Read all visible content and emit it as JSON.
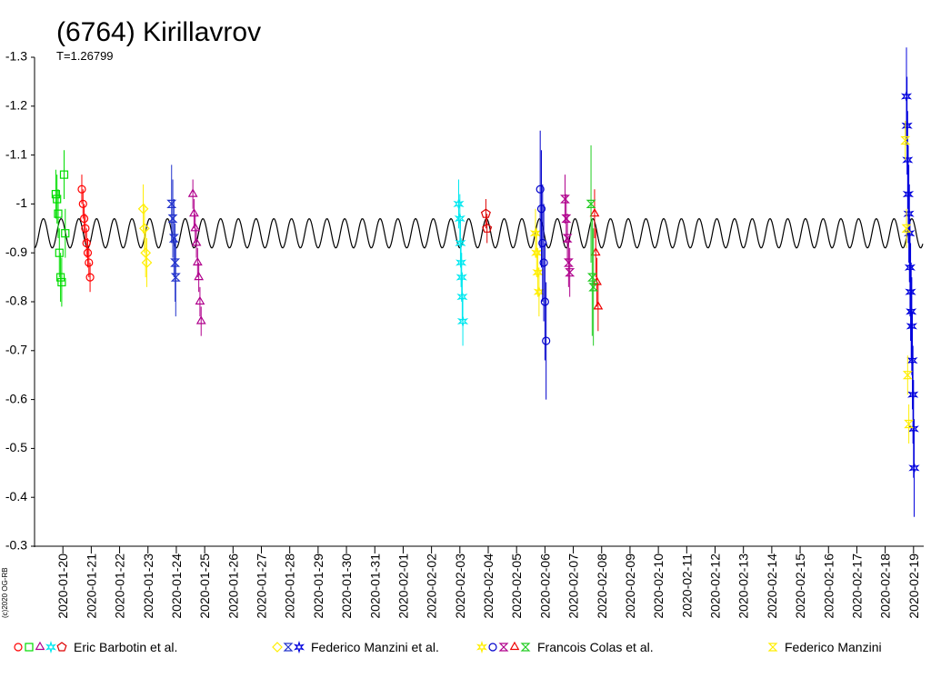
{
  "chart_data": {
    "type": "scatter",
    "title": "(6764) Kirillavrov",
    "subtitle": "T=1.26799",
    "credit": "(c)2020 OG-RB",
    "ylim": [
      -0.3,
      -1.3
    ],
    "yticks": [
      -1.3,
      -1.2,
      -1.1,
      -1.0,
      -0.9,
      -0.8,
      -0.7,
      -0.6,
      -0.5,
      -0.4,
      -0.3
    ],
    "xlim": [
      "2020-01-19T00:00",
      "2020-02-20T00:00"
    ],
    "xticks": [
      "2020-01-20",
      "2020-01-21",
      "2020-01-22",
      "2020-01-23",
      "2020-01-24",
      "2020-01-25",
      "2020-01-26",
      "2020-01-27",
      "2020-01-28",
      "2020-01-29",
      "2020-01-30",
      "2020-01-31",
      "2020-02-01",
      "2020-02-02",
      "2020-02-03",
      "2020-02-04",
      "2020-02-05",
      "2020-02-06",
      "2020-02-07",
      "2020-02-08",
      "2020-02-09",
      "2020-02-10",
      "2020-02-11",
      "2020-02-12",
      "2020-02-13",
      "2020-02-14",
      "2020-02-15",
      "2020-02-16",
      "2020-02-17",
      "2020-02-18",
      "2020-02-19"
    ],
    "fit": {
      "mean": -0.94,
      "amplitude": 0.03,
      "period_days": 0.625,
      "color": "#000000"
    },
    "observers": [
      {
        "name": "Eric Barbotin et al.",
        "sessions": [
          {
            "color": "#ff0000",
            "marker": "circle",
            "error": 0.03,
            "x": [
              "2020-01-20T16:00",
              "2020-01-20T17:00",
              "2020-01-20T18:00",
              "2020-01-20T19:00",
              "2020-01-20T20:00",
              "2020-01-20T21:00",
              "2020-01-20T22:00",
              "2020-01-20T23:00"
            ],
            "values": [
              -1.03,
              -1.0,
              -0.97,
              -0.95,
              -0.92,
              -0.9,
              -0.88,
              -0.85
            ]
          },
          {
            "color": "#00dd00",
            "marker": "square",
            "error": 0.05,
            "x": [
              "2020-01-19T18:00",
              "2020-01-19T19:00",
              "2020-01-19T20:00",
              "2020-01-19T21:00",
              "2020-01-19T22:00",
              "2020-01-19T23:00",
              "2020-01-20T01:00",
              "2020-01-20T02:00"
            ],
            "values": [
              -1.02,
              -1.01,
              -0.98,
              -0.9,
              -0.85,
              -0.84,
              -1.06,
              -0.94
            ]
          },
          {
            "color": "#b0008c",
            "marker": "triangle",
            "error": 0.03,
            "x": [
              "2020-01-24T14:00",
              "2020-01-24T15:00",
              "2020-01-24T16:00",
              "2020-01-24T17:00",
              "2020-01-24T18:00",
              "2020-01-24T19:00",
              "2020-01-24T20:00",
              "2020-01-24T21:00"
            ],
            "values": [
              -1.02,
              -0.98,
              -0.95,
              -0.92,
              -0.88,
              -0.85,
              -0.8,
              -0.76
            ]
          },
          {
            "color": "#00e8f0",
            "marker": "star",
            "error": 0.05,
            "x": [
              "2020-02-02T23:00",
              "2020-02-03T00:00",
              "2020-02-03T00:30",
              "2020-02-03T01:00",
              "2020-02-03T01:30",
              "2020-02-03T02:00",
              "2020-02-03T02:30"
            ],
            "values": [
              -1.0,
              -0.97,
              -0.92,
              -0.88,
              -0.85,
              -0.81,
              -0.76
            ]
          },
          {
            "color": "#dd0000",
            "marker": "pentagon",
            "error": 0.03,
            "x": [
              "2020-02-03T22:00",
              "2020-02-03T23:00"
            ],
            "values": [
              -0.98,
              -0.95
            ]
          }
        ]
      },
      {
        "name": "Federico Manzini et al.",
        "sessions": [
          {
            "color": "#ffee00",
            "marker": "diamond",
            "error": 0.05,
            "x": [
              "2020-01-22T20:00",
              "2020-01-22T21:00",
              "2020-01-22T22:00",
              "2020-01-22T23:00"
            ],
            "values": [
              -0.99,
              -0.95,
              -0.9,
              -0.88
            ]
          },
          {
            "color": "#2233cc",
            "marker": "hourglass",
            "error": 0.08,
            "x": [
              "2020-01-23T20:00",
              "2020-01-23T21:00",
              "2020-01-23T22:00",
              "2020-01-23T23:00",
              "2020-01-23T23:30"
            ],
            "values": [
              -1.0,
              -0.97,
              -0.93,
              -0.88,
              -0.85
            ]
          },
          {
            "color": "#0000dd",
            "marker": "star",
            "error": 0.1,
            "x": [
              "2020-02-18T18:00",
              "2020-02-18T18:30",
              "2020-02-18T19:00",
              "2020-02-18T19:30",
              "2020-02-18T20:00",
              "2020-02-18T20:30",
              "2020-02-18T21:00",
              "2020-02-18T21:30",
              "2020-02-18T22:00",
              "2020-02-18T22:30",
              "2020-02-18T23:00",
              "2020-02-18T23:30",
              "2020-02-19T00:00",
              "2020-02-19T00:30"
            ],
            "values": [
              -1.22,
              -1.16,
              -1.09,
              -1.02,
              -0.98,
              -0.94,
              -0.87,
              -0.82,
              -0.78,
              -0.75,
              -0.68,
              -0.61,
              -0.54,
              -0.46
            ]
          }
        ]
      },
      {
        "name": "Francois Colas et al.",
        "sessions": [
          {
            "color": "#ffee00",
            "marker": "star",
            "error": 0.05,
            "x": [
              "2020-02-05T16:00",
              "2020-02-05T17:00",
              "2020-02-05T18:00",
              "2020-02-05T19:00"
            ],
            "values": [
              -0.94,
              -0.9,
              -0.86,
              -0.82
            ]
          },
          {
            "color": "#0000cc",
            "marker": "circle",
            "error": 0.12,
            "x": [
              "2020-02-05T20:00",
              "2020-02-05T21:00",
              "2020-02-05T22:00",
              "2020-02-05T23:00",
              "2020-02-06T00:00",
              "2020-02-06T01:00"
            ],
            "values": [
              -1.03,
              -0.99,
              -0.92,
              -0.88,
              -0.8,
              -0.72
            ]
          },
          {
            "color": "#b0008c",
            "marker": "hourglass",
            "error": 0.05,
            "x": [
              "2020-02-06T17:00",
              "2020-02-06T18:00",
              "2020-02-06T19:00",
              "2020-02-06T20:00",
              "2020-02-06T21:00"
            ],
            "values": [
              -1.01,
              -0.97,
              -0.93,
              -0.88,
              -0.86
            ]
          },
          {
            "color": "#ee0000",
            "marker": "triangle",
            "error": 0.05,
            "x": [
              "2020-02-07T18:00",
              "2020-02-07T19:00",
              "2020-02-07T20:00",
              "2020-02-07T21:00"
            ],
            "values": [
              -0.98,
              -0.9,
              -0.84,
              -0.79
            ]
          },
          {
            "color": "#22cc22",
            "marker": "hourglass",
            "error": 0.12,
            "x": [
              "2020-02-07T15:00",
              "2020-02-07T16:00",
              "2020-02-07T17:00"
            ],
            "values": [
              -1.0,
              -0.85,
              -0.83
            ]
          }
        ]
      },
      {
        "name": "Federico Manzini",
        "sessions": [
          {
            "color": "#ffee00",
            "marker": "hourglass",
            "error": 0.04,
            "x": [
              "2020-02-18T17:00",
              "2020-02-18T18:00",
              "2020-02-18T19:00",
              "2020-02-18T20:00"
            ],
            "values": [
              -1.13,
              -0.95,
              -0.65,
              -0.55
            ]
          }
        ]
      }
    ]
  }
}
